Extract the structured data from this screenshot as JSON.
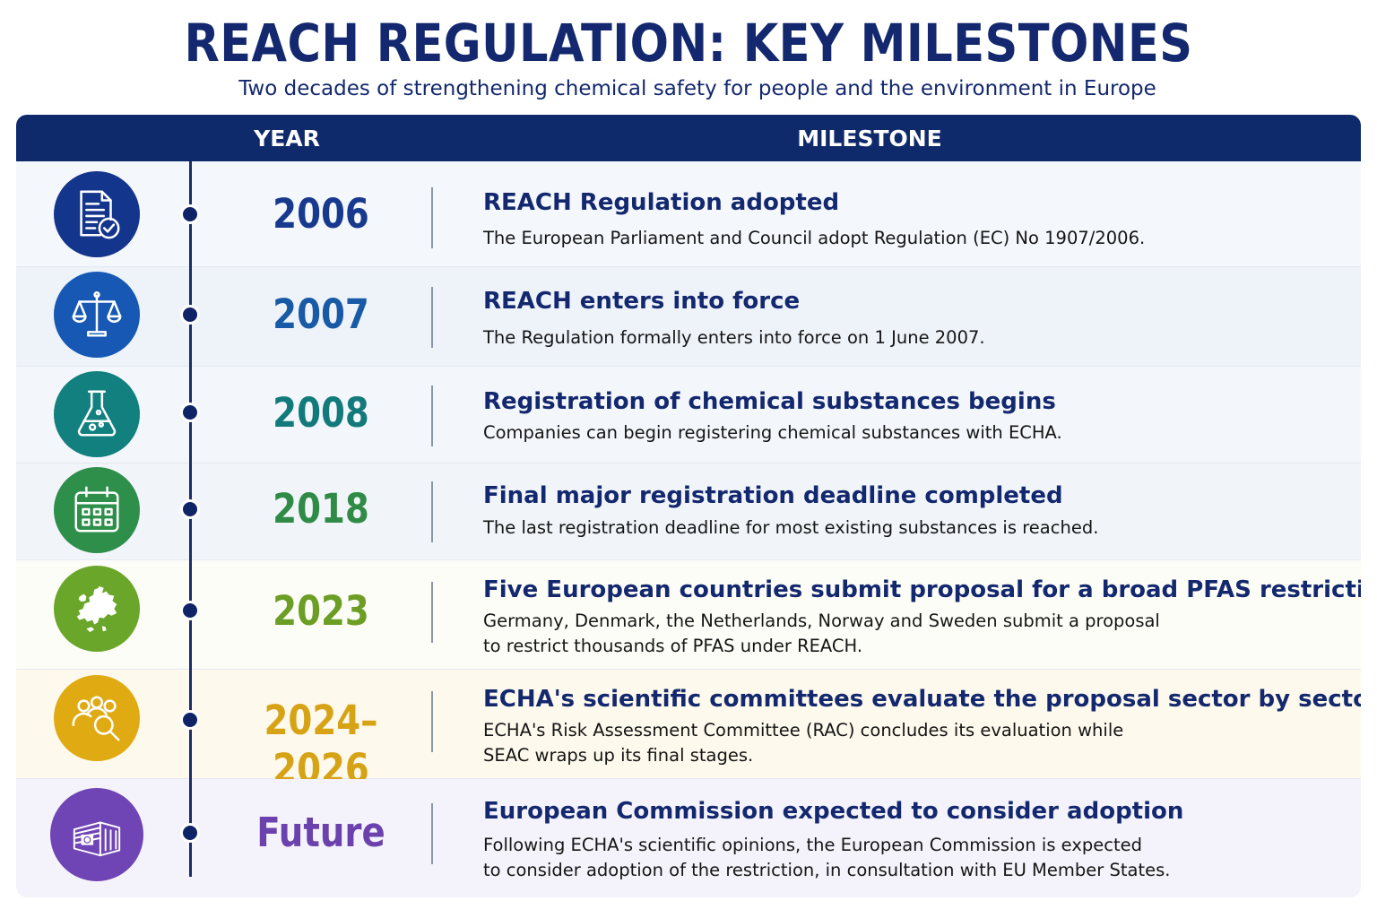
{
  "header": {
    "title": "REACH REGULATION: KEY MILESTONES",
    "subtitle": "Two decades of strengthening chemical safety for people and the environment in Europe"
  },
  "table": {
    "col_year": "YEAR",
    "col_milestone": "MILESTONE"
  },
  "rows": [
    {
      "icon": "document-check-icon",
      "icon_color": "#14358c",
      "year": "2006",
      "year_color": "#183a8e",
      "title": "REACH Regulation adopted",
      "desc": "The European Parliament and Council adopt Regulation (EC) No 1907/2006."
    },
    {
      "icon": "scales-icon",
      "icon_color": "#1658b4",
      "year": "2007",
      "year_color": "#185aa6",
      "title": "REACH enters into force",
      "desc": "The Regulation formally enters into force on 1 June 2007."
    },
    {
      "icon": "flask-icon",
      "icon_color": "#12807f",
      "year": "2008",
      "year_color": "#137a7c",
      "title": "Registration of chemical substances begins",
      "desc": "Companies can begin registering chemical substances with ECHA."
    },
    {
      "icon": "calendar-icon",
      "icon_color": "#2e8f4a",
      "year": "2018",
      "year_color": "#2f8b45",
      "title": "Final major registration deadline completed",
      "desc": "The last registration deadline for most existing substances is reached."
    },
    {
      "icon": "europe-map-icon",
      "icon_color": "#6aa629",
      "year": "2023",
      "year_color": "#6c9e25",
      "title": "Five European countries submit proposal for a broad PFAS restriction",
      "desc_lines": [
        "Germany, Denmark, the Netherlands, Norway and Sweden submit a proposal",
        "to restrict thousands of PFAS under REACH."
      ]
    },
    {
      "icon": "committee-search-icon",
      "icon_color": "#e0aa12",
      "year": "2024–2026",
      "year_color": "#d7a316",
      "title": "ECHA's scientific committees evaluate the proposal sector by sector",
      "desc_lines": [
        "ECHA's Risk Assessment Committee (RAC) concludes its evaluation while",
        "SEAC wraps up its final stages."
      ]
    },
    {
      "icon": "eu-commission-building-icon",
      "icon_color": "#6f44b4",
      "year": "Future",
      "year_color": "#6b42ad",
      "title": "European Commission expected to consider adoption",
      "desc_lines": [
        "Following ECHA's scientific opinions, the European Commission is expected",
        "to consider adoption of the restriction, in consultation with EU Member States."
      ]
    }
  ]
}
